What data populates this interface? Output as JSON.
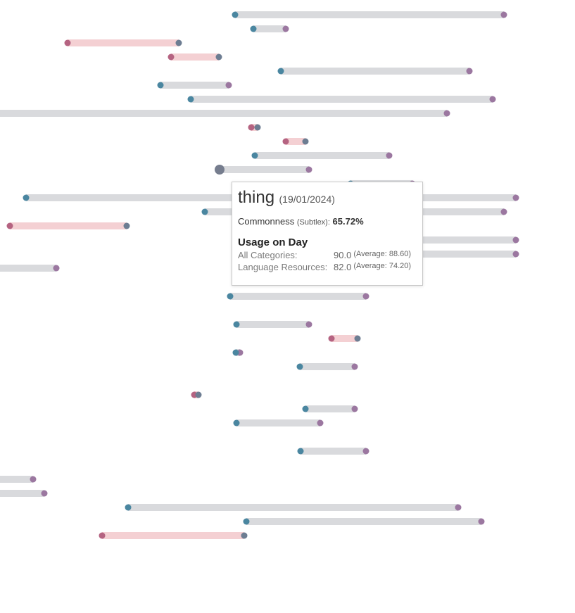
{
  "colors": {
    "neutral_bar": "#d9dadd",
    "decrease_bar": "#f4d0d3",
    "start_dot": "#4a86a0",
    "end_dot": "#9b77a0",
    "decrease_start_dot": "#b56381",
    "decrease_end_dot": "#6d7d92",
    "highlight_dot": "#767d8e"
  },
  "chart_data": {
    "type": "dumbbell",
    "xlim": [
      0,
      817
    ],
    "rows": [
      {
        "start": 334,
        "end": 716
      },
      {
        "start": 360,
        "end": 406
      },
      {
        "start": 254,
        "end": 96
      },
      {
        "start": 311,
        "end": 243
      },
      {
        "start": 399,
        "end": 667
      },
      {
        "start": 228,
        "end": 325
      },
      {
        "start": 271,
        "end": 700
      },
      {
        "start": -10,
        "end": 635
      },
      {
        "start": 366,
        "end": 357
      },
      {
        "start": 434,
        "end": 406
      },
      {
        "start": 362,
        "end": 553
      },
      {
        "start": 312,
        "end": 439,
        "highlight": true
      },
      {
        "start": 498,
        "end": 586
      },
      {
        "start": 37,
        "end": 733
      },
      {
        "start": 291,
        "end": 716
      },
      {
        "start": 180,
        "end": 14
      },
      {
        "start": 420,
        "end": 733
      },
      {
        "start": 420,
        "end": 733
      },
      {
        "start": -10,
        "end": 80
      },
      null,
      {
        "start": 327,
        "end": 520
      },
      null,
      {
        "start": 336,
        "end": 439
      },
      {
        "start": 508,
        "end": 471
      },
      {
        "start": 335,
        "end": 341
      },
      {
        "start": 426,
        "end": 504
      },
      null,
      {
        "start": 282,
        "end": 276
      },
      {
        "start": 434,
        "end": 504
      },
      {
        "start": 336,
        "end": 455
      },
      null,
      {
        "start": 427,
        "end": 520
      },
      null,
      {
        "start": -10,
        "end": 47
      },
      {
        "start": -10,
        "end": 63
      },
      {
        "start": 182,
        "end": 651
      },
      {
        "start": 350,
        "end": 684
      },
      {
        "start": 347,
        "end": 145
      }
    ]
  },
  "tooltip": {
    "word": "thing",
    "date": "(19/01/2024)",
    "commonness_label": "Commonness",
    "commonness_source": "(Subtlex):",
    "commonness_value": "65.72%",
    "heading": "Usage on Day",
    "rows": [
      {
        "label": "All Categories:",
        "value": "90.0",
        "average": "(Average: 88.60)"
      },
      {
        "label": "Language Resources:",
        "value": "82.0",
        "average": "(Average: 74.20)"
      }
    ]
  }
}
